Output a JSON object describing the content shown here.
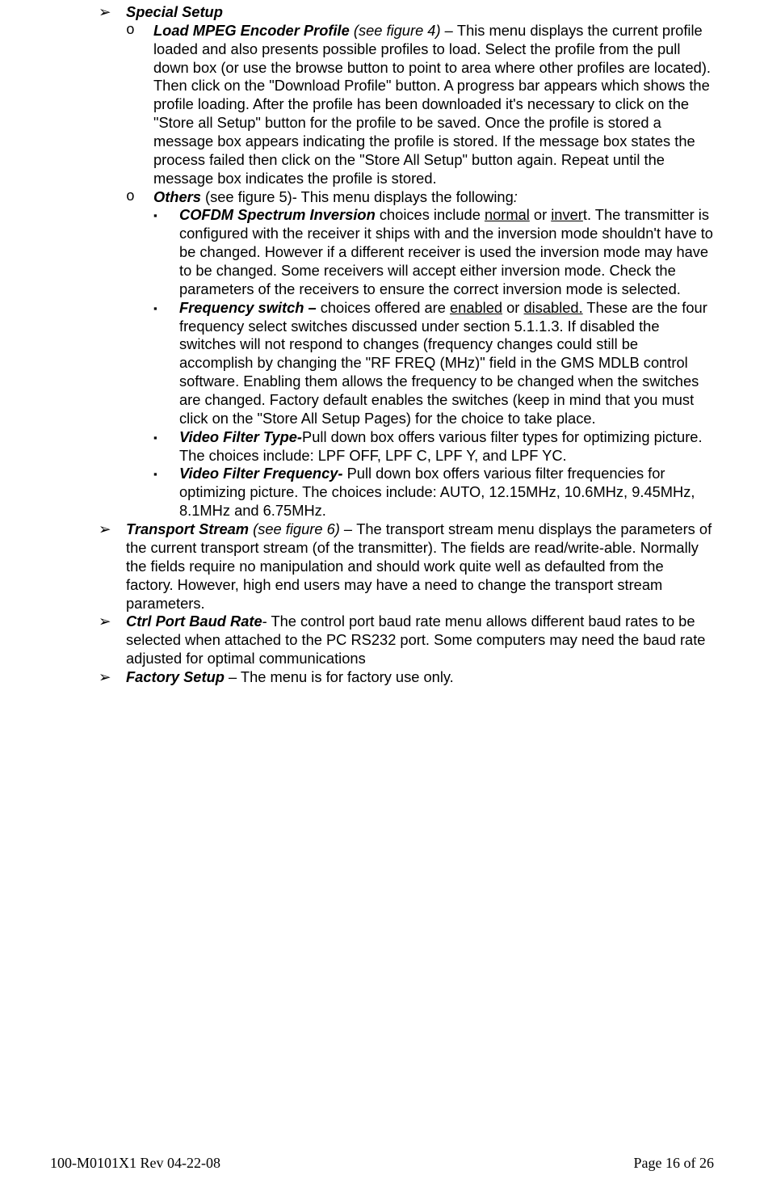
{
  "bullets": {
    "l1": "➢",
    "l2": "o",
    "l3": "▪"
  },
  "special_setup_title": "Special Setup",
  "load_profile": {
    "title": "Load MPEG Encoder Profile",
    "ref": "  (see figure 4) – ",
    "body": "This menu displays the current profile loaded and also presents possible profiles to load. Select the profile from the pull down box (or use the browse button to point to area where other profiles are located). Then click on the \"Download Profile\" button. A progress bar appears which shows the profile loading. After the profile has been downloaded it's necessary to click on the \"Store all Setup\" button for the profile to be saved.  Once the profile is stored a message box appears indicating the profile is stored. If the message box states the process failed then click on the \"Store All Setup\" button again. Repeat until the message box indicates the profile is stored."
  },
  "others": {
    "title": "Others",
    "ref": " (see figure 5)- This menu displays the following",
    "colon": ":"
  },
  "cofdm": {
    "title": "COFDM Spectrum Inversion",
    "pre": " choices include ",
    "u1": "normal",
    "mid": " or ",
    "u2": "inver",
    "post": "t. The transmitter is configured with the receiver it ships with and the inversion mode shouldn't have to be changed. However if a different receiver is used the inversion mode may have to be changed. Some receivers will accept either inversion mode. Check the parameters of the receivers to ensure the correct inversion mode is selected."
  },
  "freq": {
    "title": "Frequency switch – ",
    "pre": "choices offered are ",
    "u1": "enabled",
    "mid": " or ",
    "u2": "disabled.",
    "post": " These are the four frequency select switches discussed under section 5.1.1.3. If disabled the switches will not respond to changes (frequency changes could still be accomplish by changing the \"RF FREQ (MHz)\" field in the GMS MDLB control software. Enabling them allows the frequency to be changed when the switches are changed. Factory default enables the switches (keep in mind that you must click on the \"Store All Setup Pages) for the choice to take place."
  },
  "vft": {
    "title": "Video Filter Type-",
    "body": "Pull down box offers various filter types for optimizing picture. The choices include: LPF OFF, LPF C, LPF Y, and LPF YC."
  },
  "vff": {
    "title": "Video Filter Frequency- ",
    "body": "Pull down box offers various filter frequencies for optimizing picture. The choices include: AUTO, 12.15MHz, 10.6MHz, 9.45MHz, 8.1MHz and 6.75MHz."
  },
  "ts": {
    "title": "Transport Stream",
    "ref": " (see figure 6) – ",
    "body": "The transport stream menu displays the parameters of the current transport stream (of the transmitter). The fields are read/write-able. Normally the fields require no manipulation and should work quite well as defaulted from the factory. However, high end users may have a need to change the transport stream parameters."
  },
  "baud": {
    "title": "Ctrl Port Baud Rate",
    "body": "- The control port baud rate menu allows different baud rates to be selected when attached to the PC RS232 port. Some computers may need the baud rate adjusted for optimal communications"
  },
  "factory": {
    "title": "Factory Setup",
    "body": " – The menu is for factory use only."
  },
  "footer": {
    "left": "100-M0101X1 Rev 04-22-08",
    "right": "Page 16 of 26"
  }
}
